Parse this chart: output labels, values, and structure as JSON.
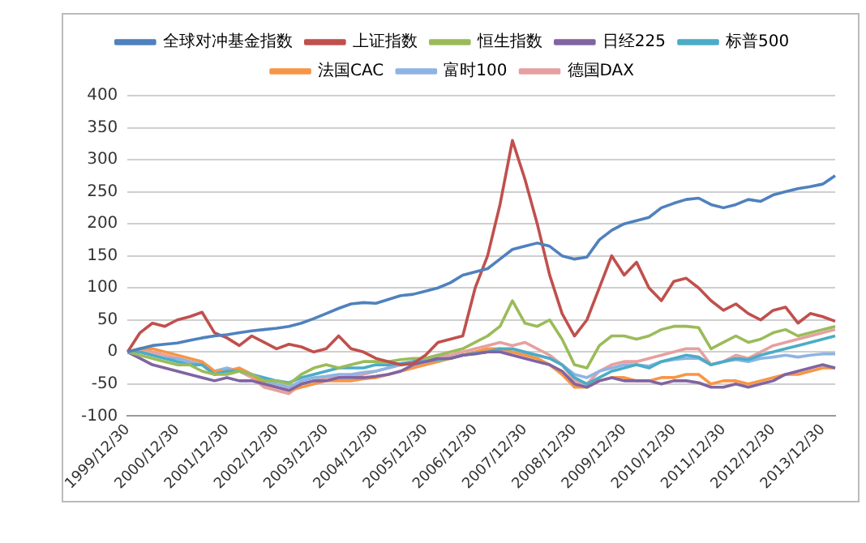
{
  "chart_data": {
    "type": "line",
    "categories": [
      "1999/12/30",
      null,
      null,
      null,
      "2000/12/30",
      null,
      null,
      null,
      "2001/12/30",
      null,
      null,
      null,
      "2002/12/30",
      null,
      null,
      null,
      "2003/12/30",
      null,
      null,
      null,
      "2004/12/30",
      null,
      null,
      null,
      "2005/12/30",
      null,
      null,
      null,
      "2006/12/30",
      null,
      null,
      null,
      "2007/12/30",
      null,
      null,
      null,
      "2008/12/30",
      null,
      null,
      null,
      "2009/12/30",
      null,
      null,
      null,
      "2010/12/30",
      null,
      null,
      null,
      "2011/12/30",
      null,
      null,
      null,
      "2012/12/30",
      null,
      null,
      null,
      "2013/12/30",
      null
    ],
    "series": [
      {
        "name": "全球对冲基金指数",
        "color": "#4f81bd",
        "values": [
          0,
          5,
          10,
          12,
          14,
          18,
          22,
          25,
          27,
          30,
          33,
          35,
          37,
          40,
          45,
          52,
          60,
          68,
          75,
          77,
          76,
          82,
          88,
          90,
          95,
          100,
          108,
          120,
          125,
          130,
          145,
          160,
          165,
          170,
          165,
          150,
          145,
          148,
          175,
          190,
          200,
          205,
          210,
          225,
          232,
          238,
          240,
          230,
          225,
          230,
          238,
          235,
          245,
          250,
          255,
          258,
          262,
          275
        ]
      },
      {
        "name": "上证指数",
        "color": "#c0504d",
        "values": [
          0,
          30,
          45,
          40,
          50,
          55,
          62,
          30,
          22,
          10,
          25,
          15,
          5,
          12,
          8,
          0,
          5,
          25,
          5,
          0,
          -10,
          -15,
          -20,
          -18,
          -5,
          15,
          20,
          25,
          100,
          150,
          230,
          330,
          270,
          200,
          120,
          60,
          25,
          50,
          100,
          150,
          120,
          140,
          100,
          80,
          110,
          115,
          100,
          80,
          65,
          75,
          60,
          50,
          65,
          70,
          45,
          60,
          55,
          48
        ]
      },
      {
        "name": "恒生指数",
        "color": "#9bbb59",
        "values": [
          0,
          -5,
          -10,
          -15,
          -20,
          -20,
          -30,
          -35,
          -35,
          -30,
          -35,
          -45,
          -45,
          -50,
          -35,
          -25,
          -20,
          -25,
          -20,
          -15,
          -15,
          -15,
          -12,
          -10,
          -10,
          -5,
          0,
          5,
          15,
          25,
          40,
          80,
          45,
          40,
          50,
          20,
          -20,
          -25,
          10,
          25,
          25,
          20,
          25,
          35,
          40,
          40,
          38,
          5,
          15,
          25,
          15,
          20,
          30,
          35,
          25,
          30,
          35,
          40
        ]
      },
      {
        "name": "日经225",
        "color": "#8064a2",
        "values": [
          0,
          -10,
          -20,
          -25,
          -30,
          -35,
          -40,
          -45,
          -40,
          -45,
          -45,
          -50,
          -55,
          -60,
          -50,
          -45,
          -45,
          -40,
          -40,
          -40,
          -38,
          -35,
          -30,
          -20,
          -15,
          -10,
          -10,
          -5,
          -3,
          0,
          0,
          -5,
          -10,
          -15,
          -20,
          -30,
          -50,
          -55,
          -45,
          -40,
          -45,
          -45,
          -45,
          -50,
          -45,
          -45,
          -48,
          -55,
          -55,
          -50,
          -55,
          -50,
          -45,
          -35,
          -30,
          -25,
          -20,
          -25
        ]
      },
      {
        "name": "标普500",
        "color": "#4bacc6",
        "values": [
          0,
          0,
          -5,
          -10,
          -15,
          -20,
          -20,
          -35,
          -30,
          -30,
          -35,
          -40,
          -45,
          -48,
          -40,
          -35,
          -30,
          -25,
          -25,
          -25,
          -20,
          -20,
          -18,
          -15,
          -15,
          -12,
          -10,
          -5,
          -2,
          0,
          5,
          5,
          0,
          -5,
          -10,
          -20,
          -40,
          -50,
          -40,
          -30,
          -25,
          -20,
          -25,
          -15,
          -10,
          -5,
          -8,
          -20,
          -15,
          -10,
          -12,
          -5,
          0,
          5,
          10,
          15,
          20,
          25
        ]
      },
      {
        "name": "法国CAC",
        "color": "#f79646",
        "values": [
          0,
          5,
          5,
          0,
          -5,
          -10,
          -15,
          -30,
          -30,
          -25,
          -35,
          -50,
          -55,
          -60,
          -55,
          -50,
          -45,
          -45,
          -45,
          -42,
          -40,
          -35,
          -30,
          -25,
          -20,
          -15,
          -10,
          -5,
          0,
          5,
          5,
          0,
          -5,
          -10,
          -20,
          -35,
          -55,
          -55,
          -45,
          -40,
          -40,
          -45,
          -45,
          -40,
          -40,
          -35,
          -35,
          -50,
          -45,
          -45,
          -50,
          -45,
          -40,
          -35,
          -35,
          -30,
          -25,
          -25
        ]
      },
      {
        "name": "富时100",
        "color": "#8eb4e3",
        "values": [
          0,
          0,
          -5,
          -10,
          -10,
          -15,
          -20,
          -30,
          -25,
          -30,
          -35,
          -45,
          -50,
          -55,
          -45,
          -40,
          -38,
          -35,
          -35,
          -32,
          -30,
          -25,
          -20,
          -15,
          -12,
          -10,
          -10,
          -5,
          -2,
          0,
          2,
          0,
          -2,
          -5,
          -10,
          -20,
          -35,
          -40,
          -30,
          -25,
          -20,
          -20,
          -22,
          -15,
          -12,
          -10,
          -10,
          -20,
          -15,
          -12,
          -15,
          -10,
          -8,
          -5,
          -8,
          -5,
          -3,
          -3
        ]
      },
      {
        "name": "德国DAX",
        "color": "#e6a0a0",
        "values": [
          0,
          5,
          0,
          -5,
          -10,
          -15,
          -20,
          -35,
          -30,
          -30,
          -40,
          -55,
          -60,
          -65,
          -50,
          -45,
          -40,
          -40,
          -38,
          -35,
          -30,
          -25,
          -20,
          -15,
          -10,
          -5,
          -5,
          0,
          5,
          10,
          15,
          10,
          15,
          5,
          -5,
          -20,
          -45,
          -50,
          -30,
          -20,
          -15,
          -15,
          -10,
          -5,
          0,
          5,
          5,
          -20,
          -15,
          -5,
          -10,
          0,
          10,
          15,
          20,
          25,
          30,
          35
        ]
      }
    ],
    "ylim": [
      -100,
      400
    ],
    "yticks": [
      -100,
      -50,
      0,
      50,
      100,
      150,
      200,
      250,
      300,
      350,
      400
    ],
    "grid": "y",
    "legend": "top",
    "marker": "none",
    "line_style": "solid"
  }
}
